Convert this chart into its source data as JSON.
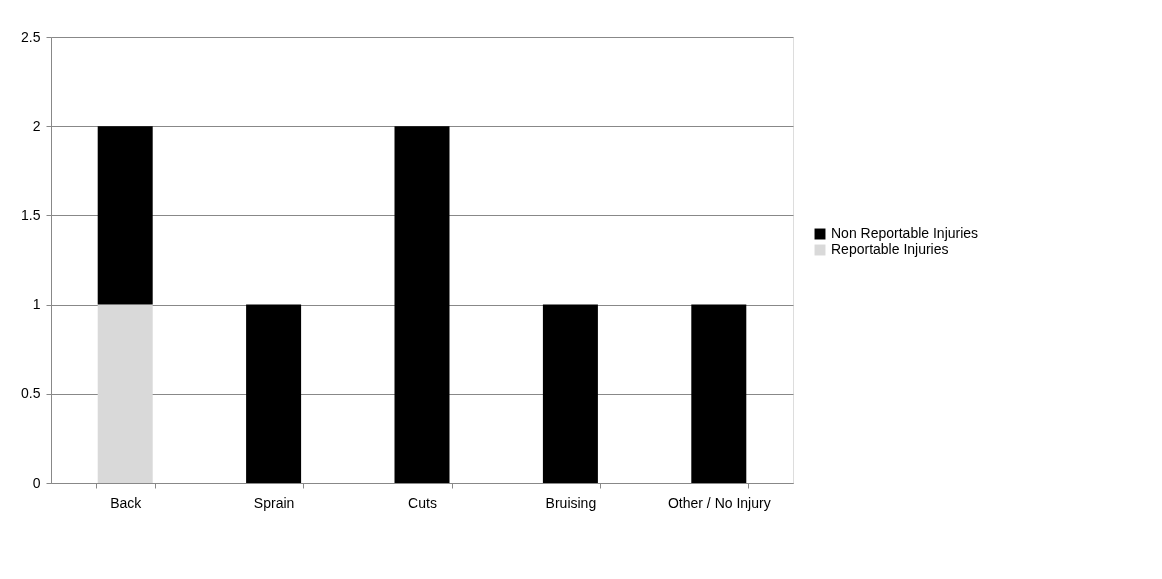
{
  "chart_data": {
    "type": "bar",
    "stacked": true,
    "categories": [
      "Back",
      "Sprain",
      "Cuts",
      "Bruising",
      "Other / No Injury"
    ],
    "series": [
      {
        "name": "Reportable Injuries",
        "color": "#d9d9d9",
        "values": [
          1,
          0,
          0,
          0,
          0
        ]
      },
      {
        "name": "Non Reportable Injuries",
        "color": "#000000",
        "values": [
          1,
          1,
          2,
          1,
          1
        ]
      }
    ],
    "ylim": [
      0,
      2.5
    ],
    "yticks": [
      0,
      0.5,
      1,
      1.5,
      2,
      2.5
    ],
    "grid": "y",
    "legend": "right"
  }
}
